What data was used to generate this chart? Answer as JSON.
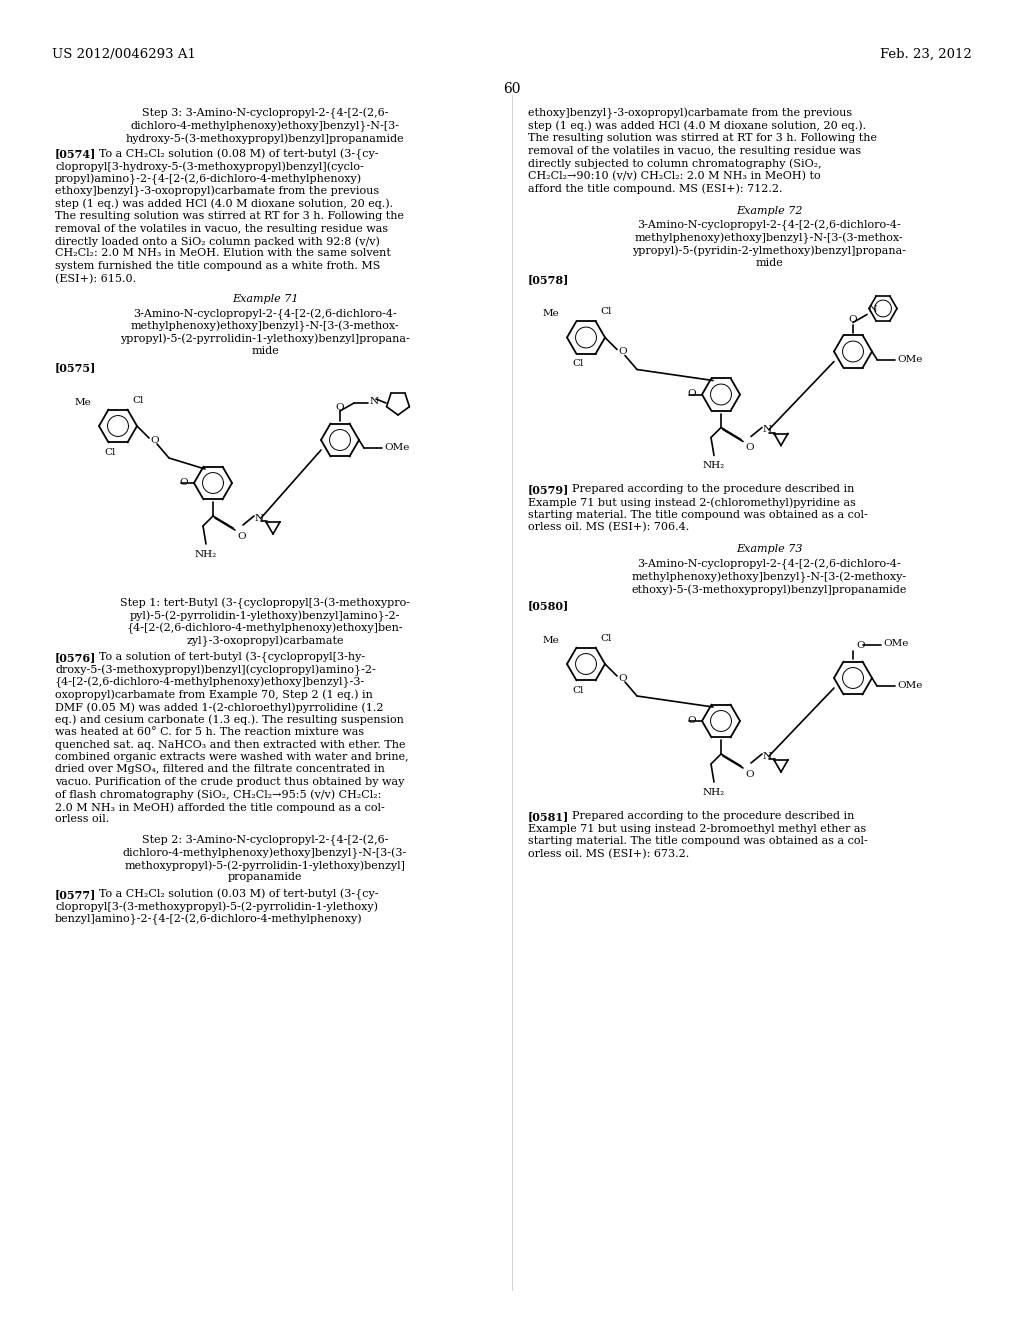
{
  "background_color": "#ffffff",
  "page_number": "60",
  "header_left": "US 2012/0046293 A1",
  "header_right": "Feb. 23, 2012"
}
